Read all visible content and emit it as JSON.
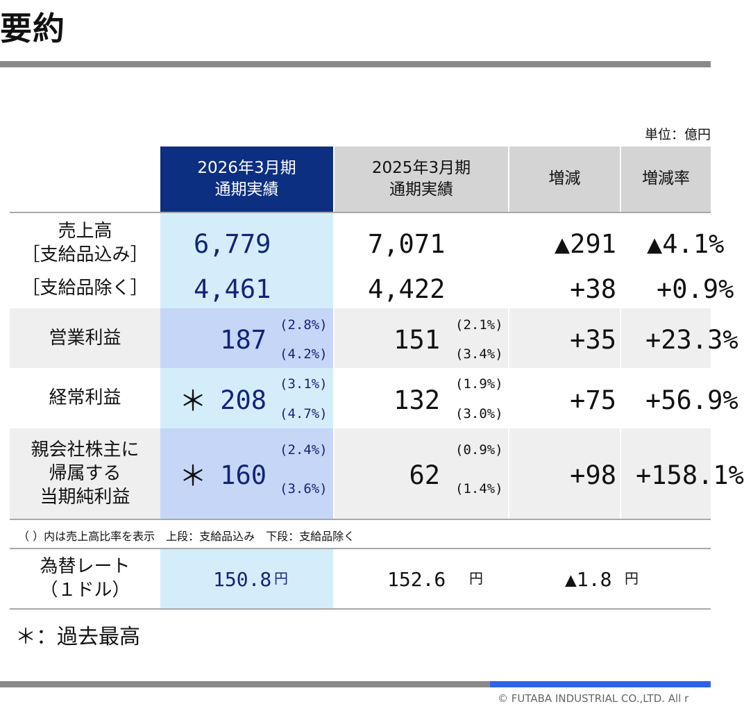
{
  "title": "要約",
  "unit": "単位：億円",
  "headers": {
    "current": [
      "2026年3月期",
      "通期実績"
    ],
    "previous": [
      "2025年3月期",
      "通期実績"
    ],
    "change": "増減",
    "change_rate": "増減率"
  },
  "rows": {
    "sales": {
      "label": [
        "売上高",
        "［支給品込み］"
      ],
      "current": "6,779",
      "previous": "7,071",
      "change": "▲291",
      "rate": "▲4.1%"
    },
    "sales_ex": {
      "label": "［支給品除く］",
      "current": "4,461",
      "previous": "4,422",
      "change": "+38",
      "rate": "+0.9%"
    },
    "operating_profit": {
      "label": "営業利益",
      "current": "187",
      "current_pct": [
        "(2.8%)",
        "(4.2%)"
      ],
      "previous": "151",
      "previous_pct": [
        "(2.1%)",
        "(3.4%)"
      ],
      "change": "+35",
      "rate": "+23.3%"
    },
    "ordinary_profit": {
      "label": "経常利益",
      "star": "＊",
      "current": "208",
      "current_pct": [
        "(3.1%)",
        "(4.7%)"
      ],
      "previous": "132",
      "previous_pct": [
        "(1.9%)",
        "(3.0%)"
      ],
      "change": "+75",
      "rate": "+56.9%"
    },
    "net_profit": {
      "label": [
        "親会社株主に",
        "帰属する",
        "当期純利益"
      ],
      "star": "＊",
      "current": "160",
      "current_pct": [
        "(2.4%)",
        "(3.6%)"
      ],
      "previous": "62",
      "previous_pct": [
        "(0.9%)",
        "(1.4%)"
      ],
      "change": "+98",
      "rate": "+158.1%"
    }
  },
  "note": "（ ）内は売上高比率を表示　上段：支給品込み　下段：支給品除く",
  "fx": {
    "label": [
      "為替レート",
      "（１ドル）"
    ],
    "current": "150.8",
    "previous": "152.6",
    "change": "▲1.8",
    "unit": "円"
  },
  "footnote": "＊：過去最高",
  "copyright": "© FUTABA INDUSTRIAL CO.,LTD.   All r",
  "colors": {
    "header_current": "#0d2f82",
    "header_other": "#d4d4d4",
    "current_col_light": "#d3eefa",
    "current_col_dark": "#c6d6f6",
    "row_gray": "#efefef",
    "rule_gray": "#8a8a8a",
    "rule_blue": "#2f62e5"
  }
}
